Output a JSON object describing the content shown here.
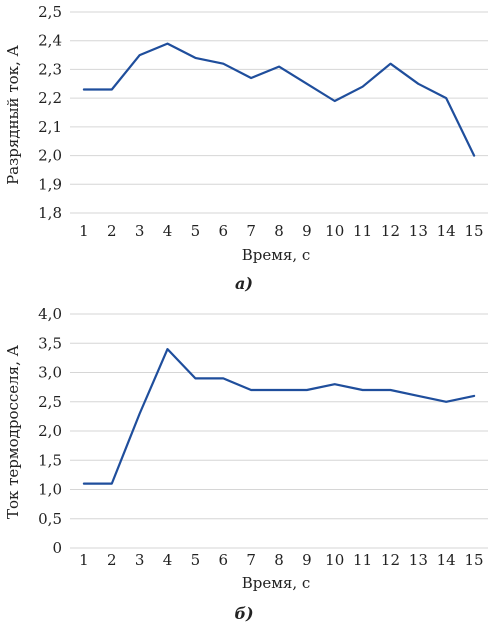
{
  "chart_data": [
    {
      "type": "line",
      "caption": "а)",
      "xlabel": "Время, с",
      "ylabel": "Разрядный ток, А",
      "x": [
        1,
        2,
        3,
        4,
        5,
        6,
        7,
        8,
        9,
        10,
        11,
        12,
        13,
        14,
        15
      ],
      "categories": [
        "1",
        "2",
        "3",
        "4",
        "5",
        "6",
        "7",
        "8",
        "9",
        "10",
        "11",
        "12",
        "13",
        "14",
        "15"
      ],
      "ylim": [
        1.8,
        2.5
      ],
      "yticks": [
        1.8,
        1.9,
        2.0,
        2.1,
        2.2,
        2.3,
        2.4,
        2.5
      ],
      "ytick_labels": [
        "1,8",
        "1,9",
        "2,0",
        "2,1",
        "2,2",
        "2,3",
        "2,4",
        "2,5"
      ],
      "grid": true,
      "series": [
        {
          "values": [
            2.23,
            2.23,
            2.35,
            2.39,
            2.34,
            2.32,
            2.27,
            2.31,
            2.25,
            2.19,
            2.24,
            2.32,
            2.25,
            2.2,
            2.0
          ],
          "color": "#1f4e9c"
        }
      ]
    },
    {
      "type": "line",
      "caption": "б)",
      "xlabel": "Время, с",
      "ylabel": "Ток термодросселя, А",
      "x": [
        1,
        2,
        3,
        4,
        5,
        6,
        7,
        8,
        9,
        10,
        11,
        12,
        13,
        14,
        15
      ],
      "categories": [
        "1",
        "2",
        "3",
        "4",
        "5",
        "6",
        "7",
        "8",
        "9",
        "10",
        "11",
        "12",
        "13",
        "14",
        "15"
      ],
      "ylim": [
        0,
        4.0
      ],
      "yticks": [
        0,
        0.5,
        1.0,
        1.5,
        2.0,
        2.5,
        3.0,
        3.5,
        4.0
      ],
      "ytick_labels": [
        "0",
        "0,5",
        "1,0",
        "1,5",
        "2,0",
        "2,5",
        "3,0",
        "3,5",
        "4,0"
      ],
      "grid": true,
      "series": [
        {
          "values": [
            1.1,
            1.1,
            2.3,
            3.4,
            2.9,
            2.9,
            2.7,
            2.7,
            2.7,
            2.8,
            2.7,
            2.7,
            2.6,
            2.5,
            2.6
          ],
          "color": "#1f4e9c"
        }
      ]
    }
  ]
}
